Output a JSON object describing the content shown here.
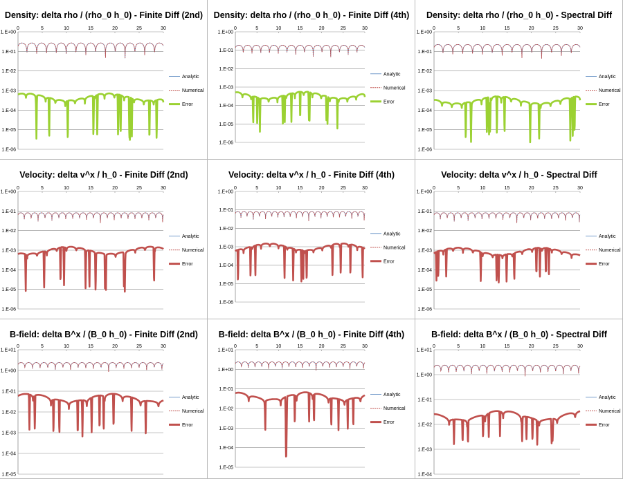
{
  "chart_data": [
    {
      "type": "line",
      "title": "Density: delta rho / (rho_0 h_0) - Finite Diff (2nd)",
      "x_ticks": [
        "0",
        "5",
        "10",
        "15",
        "20",
        "25",
        "30"
      ],
      "xlim": [
        0,
        30
      ],
      "y_ticks": [
        "1.E+00",
        "1.E-01",
        "1.E-02",
        "1.E-03",
        "1.E-04",
        "1.E-05",
        "1.E-06"
      ],
      "ylim": [
        -6,
        0
      ],
      "y_scale": "log10",
      "series": [
        {
          "name": "Analytic",
          "color": "#4f81bd"
        },
        {
          "name": "Numerical",
          "color": "#c0504d"
        },
        {
          "name": "Error",
          "color": "#9bd132"
        }
      ],
      "model": {
        "num_base": -0.9,
        "num_amp": 0.55,
        "num_k": 1.55,
        "err_base": -3.45,
        "err_amp": 0.25,
        "err_k": 1.55,
        "err_phase": 0.6,
        "dip_depth": 2.2,
        "seed": 1
      }
    },
    {
      "type": "line",
      "title": "Density: delta rho / (rho_0 h_0) - Finite Diff (4th)",
      "x_ticks": [
        "0",
        "5",
        "10",
        "15",
        "20",
        "25",
        "30"
      ],
      "xlim": [
        0,
        30
      ],
      "y_ticks": [
        "1.E+00",
        "1.E-01",
        "1.E-02",
        "1.E-03",
        "1.E-04",
        "1.E-05",
        "1.E-06"
      ],
      "ylim": [
        -6,
        0
      ],
      "y_scale": "log10",
      "series": [
        {
          "name": "Analytic",
          "color": "#4f81bd"
        },
        {
          "name": "Numerical",
          "color": "#c0504d"
        },
        {
          "name": "Error",
          "color": "#9bd132"
        }
      ],
      "model": {
        "num_base": -1.0,
        "num_amp": 0.45,
        "num_k": 1.55,
        "err_base": -3.55,
        "err_amp": 0.25,
        "err_k": 1.55,
        "err_phase": 0.6,
        "dip_depth": 1.6,
        "seed": 2
      }
    },
    {
      "type": "line",
      "title": "Density: delta rho / (rho_0 h_0) - Spectral Diff",
      "x_ticks": [
        "0",
        "5",
        "10",
        "15",
        "20",
        "25",
        "30"
      ],
      "xlim": [
        0,
        30
      ],
      "y_ticks": [
        "1.E+00",
        "1.E-01",
        "1.E-02",
        "1.E-03",
        "1.E-04",
        "1.E-05",
        "1.E-06"
      ],
      "ylim": [
        -6,
        0
      ],
      "y_scale": "log10",
      "series": [
        {
          "name": "Analytic",
          "color": "#4f81bd"
        },
        {
          "name": "Numerical",
          "color": "#c0504d"
        },
        {
          "name": "Error",
          "color": "#9bd132"
        }
      ],
      "model": {
        "num_base": -0.95,
        "num_amp": 0.5,
        "num_k": 1.55,
        "err_base": -3.6,
        "err_amp": 0.25,
        "err_k": 1.55,
        "err_phase": 0.6,
        "dip_depth": 2.0,
        "seed": 3
      }
    },
    {
      "type": "line",
      "title": "Velocity: delta v^x / h_0 - Finite Diff (2nd)",
      "x_ticks": [
        "0",
        "5",
        "10",
        "15",
        "20",
        "25",
        "30"
      ],
      "xlim": [
        0,
        30
      ],
      "y_ticks": [
        "1.E+00",
        "1.E-01",
        "1.E-02",
        "1.E-03",
        "1.E-04",
        "1.E-05",
        "1.E-06"
      ],
      "ylim": [
        -6,
        0
      ],
      "y_scale": "log10",
      "series": [
        {
          "name": "Analytic",
          "color": "#4f81bd"
        },
        {
          "name": "Numerical",
          "color": "#c0504d"
        },
        {
          "name": "Error",
          "color": "#c0504d"
        }
      ],
      "model": {
        "num_base": -1.3,
        "num_amp": 0.35,
        "num_k": 2.2,
        "err_base": -3.1,
        "err_amp": 0.2,
        "err_k": 1.55,
        "err_phase": 0.2,
        "dip_depth": 2.0,
        "seed": 4
      }
    },
    {
      "type": "line",
      "title": "Velocity: delta v^x / h_0 - Finite Diff (4th)",
      "x_ticks": [
        "0",
        "5",
        "10",
        "15",
        "20",
        "25",
        "30"
      ],
      "xlim": [
        0,
        30
      ],
      "y_ticks": [
        "1.E+00",
        "1.E-01",
        "1.E-02",
        "1.E-03",
        "1.E-04",
        "1.E-05",
        "1.E-06"
      ],
      "ylim": [
        -6,
        0
      ],
      "y_scale": "log10",
      "series": [
        {
          "name": "Analytic",
          "color": "#4f81bd"
        },
        {
          "name": "Numerical",
          "color": "#c0504d"
        },
        {
          "name": "Error",
          "color": "#c0504d"
        }
      ],
      "model": {
        "num_base": -1.3,
        "num_amp": 0.35,
        "num_k": 2.2,
        "err_base": -3.1,
        "err_amp": 0.2,
        "err_k": 1.55,
        "err_phase": 0.2,
        "dip_depth": 1.8,
        "seed": 5
      }
    },
    {
      "type": "line",
      "title": "Velocity: delta v^x / h_0 - Spectral Diff",
      "x_ticks": [
        "0",
        "5",
        "10",
        "15",
        "20",
        "25",
        "30"
      ],
      "xlim": [
        0,
        30
      ],
      "y_ticks": [
        "1.E+00",
        "1.E-01",
        "1.E-02",
        "1.E-03",
        "1.E-04",
        "1.E-05",
        "1.E-06"
      ],
      "ylim": [
        -6,
        0
      ],
      "y_scale": "log10",
      "series": [
        {
          "name": "Analytic",
          "color": "#4f81bd"
        },
        {
          "name": "Numerical",
          "color": "#c0504d"
        },
        {
          "name": "Error",
          "color": "#c0504d"
        }
      ],
      "model": {
        "num_base": -1.3,
        "num_amp": 0.35,
        "num_k": 2.2,
        "err_base": -3.15,
        "err_amp": 0.2,
        "err_k": 1.55,
        "err_phase": 0.2,
        "dip_depth": 1.5,
        "seed": 6
      }
    },
    {
      "type": "line",
      "title": "B-field: delta B^x / (B_0 h_0) - Finite Diff (2nd)",
      "x_ticks": [
        "0",
        "5",
        "10",
        "15",
        "20",
        "25",
        "30"
      ],
      "xlim": [
        0,
        30
      ],
      "y_ticks": [
        "1.E+01",
        "1.E+00",
        "1.E-01",
        "1.E-02",
        "1.E-03",
        "1.E-04",
        "1.E-05"
      ],
      "ylim": [
        -5,
        1
      ],
      "y_scale": "log10",
      "series": [
        {
          "name": "Analytic",
          "color": "#4f81bd"
        },
        {
          "name": "Numerical",
          "color": "#c0504d"
        },
        {
          "name": "Error",
          "color": "#c0504d"
        }
      ],
      "model": {
        "num_base": 0.2,
        "num_amp": 0.3,
        "num_k": 2.0,
        "err_base": -1.45,
        "err_amp": 0.3,
        "err_k": 0.85,
        "err_phase": 0.5,
        "dip_depth": 1.8,
        "seed": 7
      }
    },
    {
      "type": "line",
      "title": "B-field: delta B^x / (B_0 h_0) - Finite Diff (4th)",
      "x_ticks": [
        "0",
        "5",
        "10",
        "15",
        "20",
        "25",
        "30"
      ],
      "xlim": [
        0,
        30
      ],
      "y_ticks": [
        "1.E+01",
        "1.E+00",
        "1.E-01",
        "1.E-02",
        "1.E-03",
        "1.E-04",
        "1.E-05"
      ],
      "ylim": [
        -5,
        1
      ],
      "y_scale": "log10",
      "series": [
        {
          "name": "Analytic",
          "color": "#4f81bd"
        },
        {
          "name": "Numerical",
          "color": "#c0504d"
        },
        {
          "name": "Error",
          "color": "#c0504d"
        }
      ],
      "model": {
        "num_base": 0.2,
        "num_amp": 0.3,
        "num_k": 2.0,
        "err_base": -1.5,
        "err_amp": 0.3,
        "err_k": 0.85,
        "err_phase": 0.5,
        "dip_depth": 1.6,
        "seed": 8
      }
    },
    {
      "type": "line",
      "title": "B-field: delta B^x / (B_0 h_0) - Spectral Diff",
      "x_ticks": [
        "0",
        "5",
        "10",
        "15",
        "20",
        "25",
        "30"
      ],
      "xlim": [
        0,
        30
      ],
      "y_ticks": [
        "1.E+01",
        "1.E+00",
        "1.E-01",
        "1.E-02",
        "1.E-03",
        "1.E-04"
      ],
      "ylim": [
        -4,
        1
      ],
      "y_scale": "log10",
      "series": [
        {
          "name": "Analytic",
          "color": "#4f81bd"
        },
        {
          "name": "Numerical",
          "color": "#c0504d"
        },
        {
          "name": "Error",
          "color": "#c0504d"
        }
      ],
      "model": {
        "num_base": 0.2,
        "num_amp": 0.3,
        "num_k": 2.0,
        "err_base": -1.75,
        "err_amp": 0.25,
        "err_k": 0.85,
        "err_phase": 0.5,
        "dip_depth": 1.0,
        "seed": 9
      }
    }
  ]
}
